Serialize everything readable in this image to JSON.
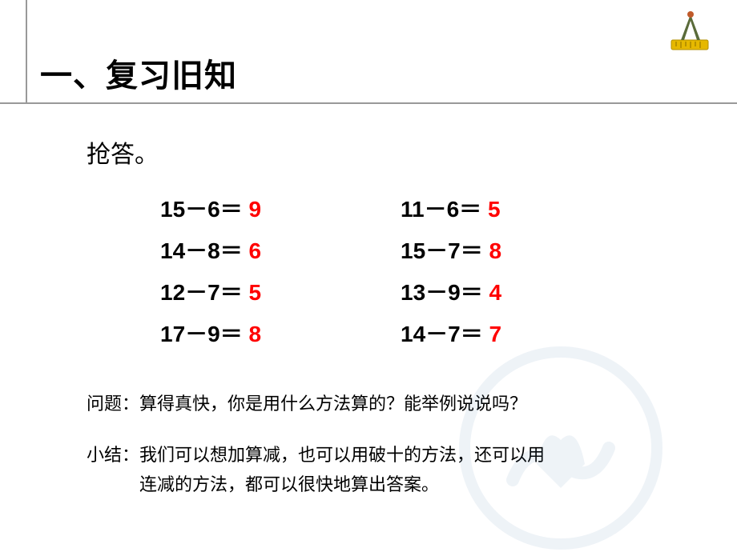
{
  "title": "一、复习旧知",
  "subtitle": "抢答。",
  "equations": [
    {
      "expr": "15－6＝",
      "ans": "9"
    },
    {
      "expr": "11－6＝",
      "ans": "5"
    },
    {
      "expr": "14－8＝",
      "ans": "6"
    },
    {
      "expr": "15－7＝",
      "ans": "8"
    },
    {
      "expr": "12－7＝",
      "ans": "5"
    },
    {
      "expr": "13－9＝",
      "ans": "4"
    },
    {
      "expr": "17－9＝",
      "ans": "8"
    },
    {
      "expr": "14－7＝",
      "ans": "7"
    }
  ],
  "question_label": "问题：",
  "question_text": "算得真快，你是用什么方法算的？能举例说说吗？",
  "summary_label": "小结：",
  "summary_text": "我们可以想加算减，也可以用破十的方法，还可以用\n连减的方法，都可以很快地算出答案。",
  "style": {
    "title_fontsize": 40,
    "subtitle_fontsize": 30,
    "eq_fontsize": 28,
    "note_fontsize": 22,
    "text_color": "#000000",
    "answer_color": "#ff0000",
    "rule_color": "#999999",
    "background_color": "#ffffff",
    "watermark_opacity": 0.08,
    "icon_colors": {
      "ruler": "#e6b800",
      "compass_arm": "#5a6b3a",
      "compass_pivot": "#c05a2a"
    }
  }
}
